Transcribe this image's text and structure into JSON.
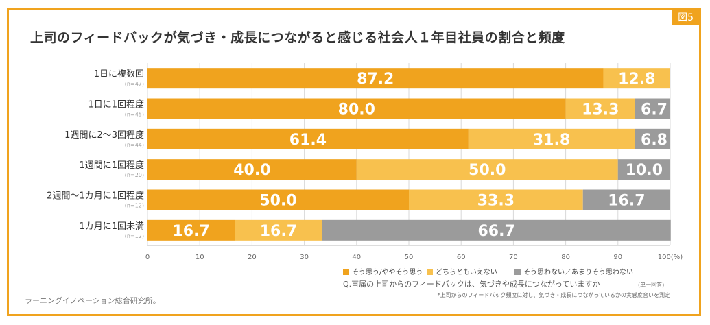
{
  "figure_tag": "図5",
  "source": "ラーニングイノベーション総合研究所。",
  "colors": {
    "frame": "#f0a31e",
    "agree": "#f0a31e",
    "neutral": "#f8c14e",
    "disagree": "#9b9b9b"
  },
  "chart_data": {
    "type": "bar",
    "orientation": "horizontal-stacked",
    "title": "上司のフィードバックが気づき・成長につながると感じる社会人１年目社員の割合と頻度",
    "categories": [
      "1日に複数回",
      "1日に1回程度",
      "1週間に2〜3回程度",
      "1週間に1回程度",
      "2週間〜1カ月に1回程度",
      "1カ月に1回未満"
    ],
    "sample_sizes": [
      "(n=47)",
      "(n=45)",
      "(n=44)",
      "(n=20)",
      "(n=12)",
      "(n=12)"
    ],
    "series": [
      {
        "name": "そう思う/ややそう思う",
        "values": [
          87.2,
          80.0,
          61.4,
          40.0,
          50.0,
          16.7
        ]
      },
      {
        "name": "どちらともいえない",
        "values": [
          12.8,
          13.3,
          31.8,
          50.0,
          33.3,
          16.7
        ]
      },
      {
        "name": "そう思わない／あまりそう思わない",
        "values": [
          0,
          6.7,
          6.8,
          10.0,
          16.7,
          66.7
        ]
      }
    ],
    "value_labels": [
      [
        "87.2",
        "12.8",
        ""
      ],
      [
        "80.0",
        "13.3",
        "6.7"
      ],
      [
        "61.4",
        "31.8",
        "6.8"
      ],
      [
        "40.0",
        "50.0",
        "10.0"
      ],
      [
        "50.0",
        "33.3",
        "16.7"
      ],
      [
        "16.7",
        "16.7",
        "66.7"
      ]
    ],
    "xlim": [
      0,
      100
    ],
    "xticks": [
      "0",
      "10",
      "20",
      "30",
      "40",
      "50",
      "60",
      "70",
      "80",
      "90",
      "100(%)"
    ],
    "grid": true,
    "legend_position": "bottom-right",
    "note_question": "Q.直属の上司からのフィードバックは、気づきや成長につながっていますか",
    "note_question_suffix": "(単一回答)",
    "note_small": "*上司からのフィードバック頻度に対し、気づき・成長につながっているかの実感度合いを測定"
  }
}
